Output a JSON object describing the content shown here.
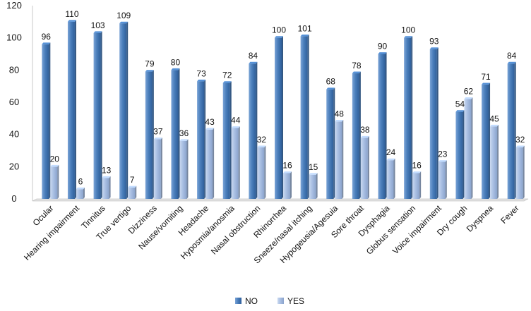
{
  "chart_data": {
    "type": "bar",
    "title": "",
    "xlabel": "",
    "ylabel": "",
    "ylim": [
      0,
      120
    ],
    "yticks": [
      0,
      20,
      40,
      60,
      80,
      100,
      120
    ],
    "grid": false,
    "legend_position": "bottom",
    "categories": [
      "Ocular",
      "Hearing impairment",
      "Tinnitus",
      "True vertigo",
      "Dizziness",
      "Nause/vomiting",
      "Headache",
      "Hyposmia/anosmia",
      "Nasal obstruction",
      "Rhinorrhea",
      "Sneeze/nasal  itching",
      "Hypogeusia/Agesuia",
      "Sore throat",
      "Dysphagia",
      "Globus sensation",
      "Voice impairment",
      "Dry cough",
      "Dyspnea",
      "Fever"
    ],
    "series": [
      {
        "name": "NO",
        "color": "#4a7ebb",
        "values": [
          96,
          110,
          103,
          109,
          79,
          80,
          73,
          72,
          84,
          100,
          101,
          68,
          78,
          90,
          100,
          93,
          54,
          71,
          84
        ]
      },
      {
        "name": "YES",
        "color": "#a9bfe3",
        "values": [
          20,
          6,
          13,
          7,
          37,
          36,
          43,
          44,
          32,
          16,
          15,
          48,
          38,
          24,
          16,
          23,
          62,
          45,
          32
        ]
      }
    ]
  }
}
